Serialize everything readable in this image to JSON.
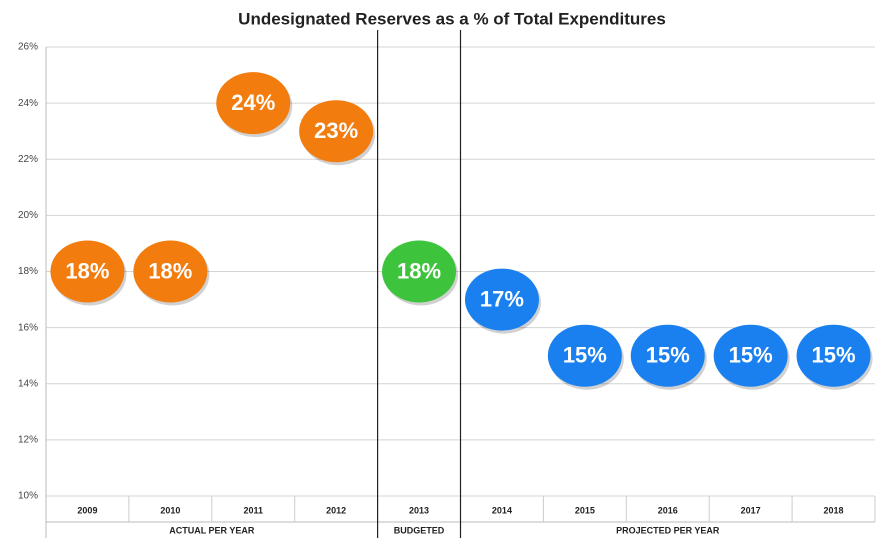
{
  "chart_data": {
    "type": "dot",
    "title": "Undesignated Reserves as a % of Total Expenditures",
    "ylim": [
      10,
      26
    ],
    "yticks": [
      {
        "value": 10,
        "label": "10%"
      },
      {
        "value": 12,
        "label": "12%"
      },
      {
        "value": 14,
        "label": "14%"
      },
      {
        "value": 16,
        "label": "16%"
      },
      {
        "value": 18,
        "label": "18%"
      },
      {
        "value": 20,
        "label": "20%"
      },
      {
        "value": 22,
        "label": "22%"
      },
      {
        "value": 24,
        "label": "24%"
      },
      {
        "value": 26,
        "label": "26%"
      }
    ],
    "grid": true,
    "groups": [
      {
        "label": "ACTUAL PER YEAR",
        "color": "#f27c0e",
        "categories": [
          "2009",
          "2010",
          "2011",
          "2012"
        ],
        "values": [
          18,
          18,
          24,
          23
        ],
        "value_labels": [
          "18%",
          "18%",
          "24%",
          "23%"
        ]
      },
      {
        "label": "BUDGETED",
        "color": "#3ec43c",
        "categories": [
          "2013"
        ],
        "values": [
          18
        ],
        "value_labels": [
          "18%"
        ]
      },
      {
        "label": "PROJECTED PER YEAR",
        "color": "#1a80f0",
        "categories": [
          "2014",
          "2015",
          "2016",
          "2017",
          "2018"
        ],
        "values": [
          17,
          15,
          15,
          15,
          15
        ],
        "value_labels": [
          "17%",
          "15%",
          "15%",
          "15%",
          "15%"
        ]
      }
    ]
  }
}
